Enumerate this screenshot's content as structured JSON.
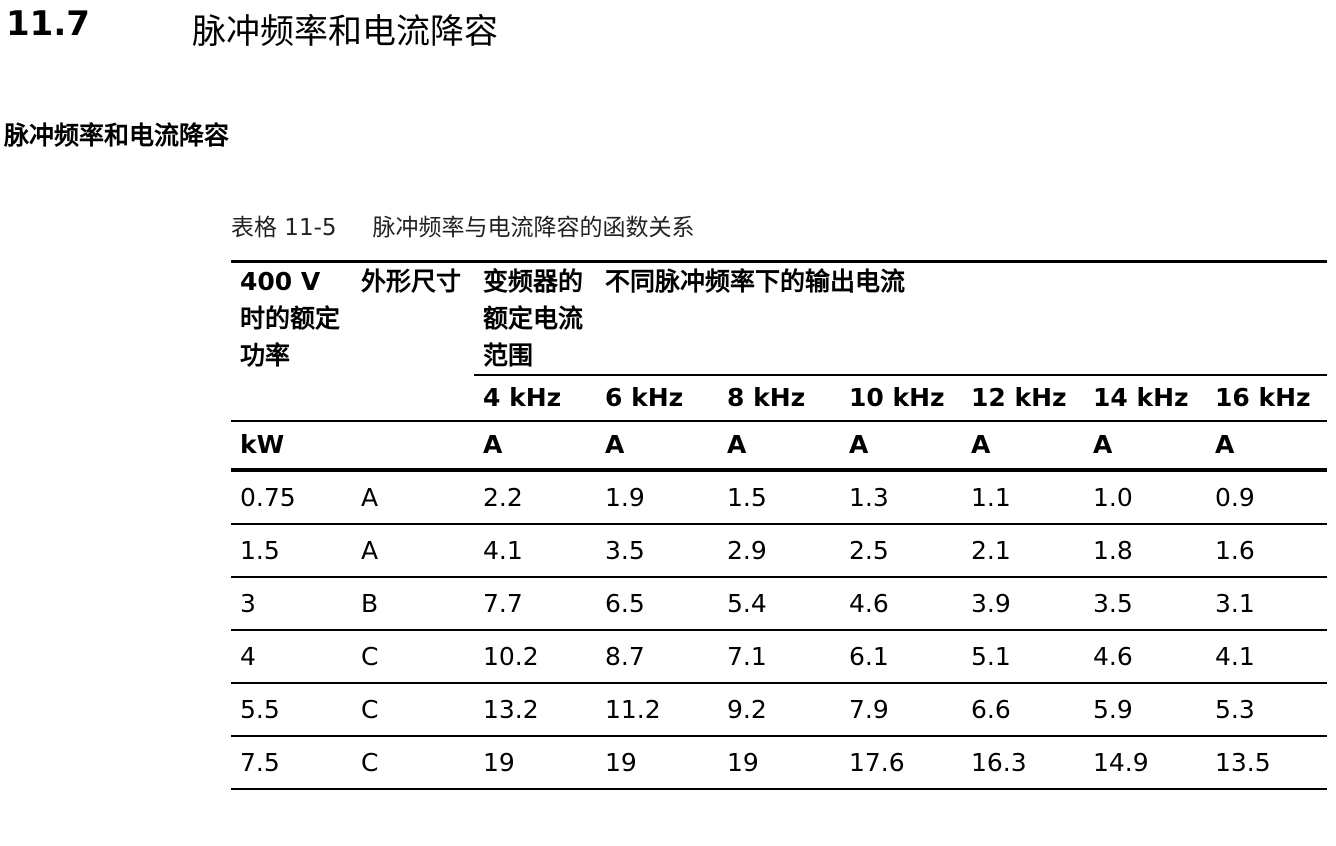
{
  "section": {
    "number": "11.7",
    "title": "脉冲频率和电流降容"
  },
  "subheading": "脉冲频率和电流降容",
  "caption": {
    "label": "表格 11-5",
    "text": "脉冲频率与电流降容的函数关系"
  },
  "table": {
    "header": {
      "rated_power": "400 V 时的额定功率",
      "frame_size": "外形尺寸",
      "rated_current_range": "变频器的额定电流范围",
      "output_current_group": "不同脉冲频率下的输出电流"
    },
    "frequencies": [
      "4 kHz",
      "6 kHz",
      "8 kHz",
      "10 kHz",
      "12 kHz",
      "14 kHz",
      "16 kHz"
    ],
    "units": {
      "power": "kW",
      "frame": "",
      "current": [
        "A",
        "A",
        "A",
        "A",
        "A",
        "A",
        "A"
      ]
    },
    "rows": [
      {
        "power": "0.75",
        "frame": "A",
        "currents": [
          "2.2",
          "1.9",
          "1.5",
          "1.3",
          "1.1",
          "1.0",
          "0.9"
        ]
      },
      {
        "power": "1.5",
        "frame": "A",
        "currents": [
          "4.1",
          "3.5",
          "2.9",
          "2.5",
          "2.1",
          "1.8",
          "1.6"
        ]
      },
      {
        "power": "3",
        "frame": "B",
        "currents": [
          "7.7",
          "6.5",
          "5.4",
          "4.6",
          "3.9",
          "3.5",
          "3.1"
        ]
      },
      {
        "power": "4",
        "frame": "C",
        "currents": [
          "10.2",
          "8.7",
          "7.1",
          "6.1",
          "5.1",
          "4.6",
          "4.1"
        ]
      },
      {
        "power": "5.5",
        "frame": "C",
        "currents": [
          "13.2",
          "11.2",
          "9.2",
          "7.9",
          "6.6",
          "5.9",
          "5.3"
        ]
      },
      {
        "power": "7.5",
        "frame": "C",
        "currents": [
          "19",
          "19",
          "19",
          "17.6",
          "16.3",
          "14.9",
          "13.5"
        ]
      }
    ]
  }
}
